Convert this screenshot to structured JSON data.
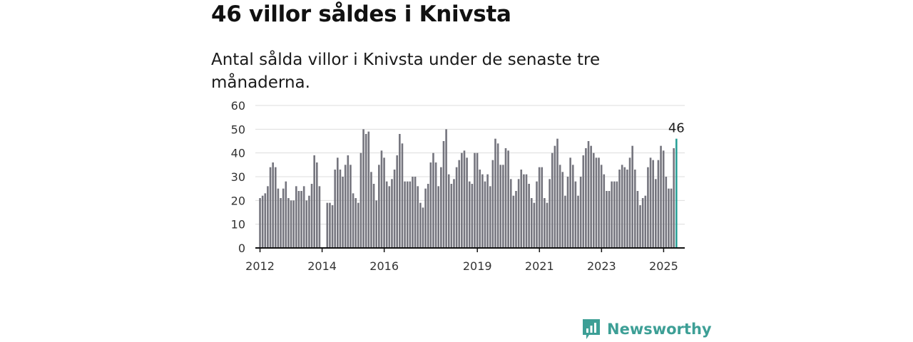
{
  "headline": "46 villor såldes i Knivsta",
  "subtitle": "Antal sålda villor i Knivsta under de senaste tre månaderna.",
  "brand": {
    "name": "Newsworthy",
    "logo_icon": "bar-chart-logo-icon",
    "color": "#3d9f96"
  },
  "colors": {
    "bar": "#75757e",
    "highlight": "#2aa198",
    "grid": "#dddddd",
    "axis": "#111111"
  },
  "chart_data": {
    "type": "bar",
    "title": "",
    "xlabel": "",
    "ylabel": "",
    "ylim": [
      0,
      60
    ],
    "yticks": [
      0,
      10,
      20,
      30,
      40,
      50,
      60
    ],
    "xlim": [
      2011.85,
      2025.68
    ],
    "x_tick_labels": [
      {
        "label": "2012",
        "x": 2012.0
      },
      {
        "label": "2014",
        "x": 2014.0
      },
      {
        "label": "2016",
        "x": 2016.0
      },
      {
        "label": "2019",
        "x": 2019.0
      },
      {
        "label": "2021",
        "x": 2021.0
      },
      {
        "label": "2023",
        "x": 2023.0
      },
      {
        "label": "2025",
        "x": 2025.0
      }
    ],
    "grid": true,
    "x_start": 2012.0,
    "x_step": 0.0833,
    "values": [
      21,
      22,
      23,
      26,
      34,
      36,
      34,
      25,
      21,
      25,
      28,
      21,
      20,
      20,
      26,
      24,
      24,
      26,
      20,
      22,
      27,
      39,
      36,
      26,
      null,
      null,
      19,
      19,
      18,
      33,
      38,
      33,
      30,
      35,
      39,
      35,
      23,
      21,
      19,
      40,
      50,
      48,
      49,
      32,
      27,
      20,
      35,
      41,
      38,
      28,
      26,
      29,
      33,
      39,
      48,
      44,
      28,
      28,
      28,
      30,
      30,
      26,
      19,
      17,
      25,
      27,
      36,
      40,
      36,
      26,
      34,
      45,
      50,
      31,
      27,
      29,
      34,
      37,
      40,
      41,
      38,
      28,
      27,
      40,
      40,
      33,
      31,
      28,
      31,
      26,
      37,
      46,
      44,
      35,
      35,
      42,
      41,
      29,
      22,
      24,
      29,
      33,
      31,
      31,
      27,
      21,
      19,
      28,
      34,
      34,
      21,
      19,
      29,
      40,
      43,
      46,
      35,
      32,
      22,
      30,
      38,
      35,
      28,
      22,
      30,
      39,
      42,
      45,
      43,
      40,
      38,
      38,
      35,
      31,
      24,
      24,
      28,
      28,
      28,
      33,
      35,
      34,
      33,
      38,
      43,
      33,
      24,
      18,
      21,
      22,
      34,
      38,
      37,
      29,
      37,
      43,
      41,
      30,
      25,
      25,
      42,
      46
    ],
    "highlight_last": true,
    "last_value_label": "46"
  }
}
